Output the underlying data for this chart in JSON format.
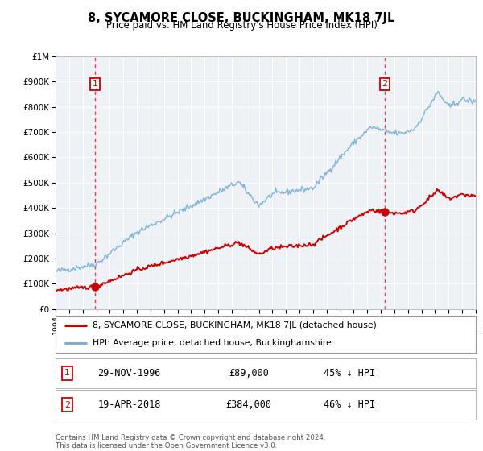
{
  "title": "8, SYCAMORE CLOSE, BUCKINGHAM, MK18 7JL",
  "subtitle": "Price paid vs. HM Land Registry's House Price Index (HPI)",
  "legend_label_red": "8, SYCAMORE CLOSE, BUCKINGHAM, MK18 7JL (detached house)",
  "legend_label_blue": "HPI: Average price, detached house, Buckinghamshire",
  "sale1_date": "29-NOV-1996",
  "sale1_price": "£89,000",
  "sale1_hpi": "45% ↓ HPI",
  "sale1_year": 1996.91,
  "sale1_value": 89000,
  "sale2_date": "19-APR-2018",
  "sale2_price": "£384,000",
  "sale2_hpi": "46% ↓ HPI",
  "sale2_year": 2018.29,
  "sale2_value": 384000,
  "xmin": 1994,
  "xmax": 2025,
  "ymin": 0,
  "ymax": 1000000,
  "bg_color": "#eef2f7",
  "grid_color": "#ffffff",
  "red_color": "#cc0000",
  "blue_color": "#7aafd4",
  "dash_color": "#dd2222",
  "footnote": "Contains HM Land Registry data © Crown copyright and database right 2024.\nThis data is licensed under the Open Government Licence v3.0.",
  "yticks": [
    0,
    100000,
    200000,
    300000,
    400000,
    500000,
    600000,
    700000,
    800000,
    900000,
    1000000
  ],
  "ytick_labels": [
    "£0",
    "£100K",
    "£200K",
    "£300K",
    "£400K",
    "£500K",
    "£600K",
    "£700K",
    "£800K",
    "£900K",
    "£1M"
  ]
}
